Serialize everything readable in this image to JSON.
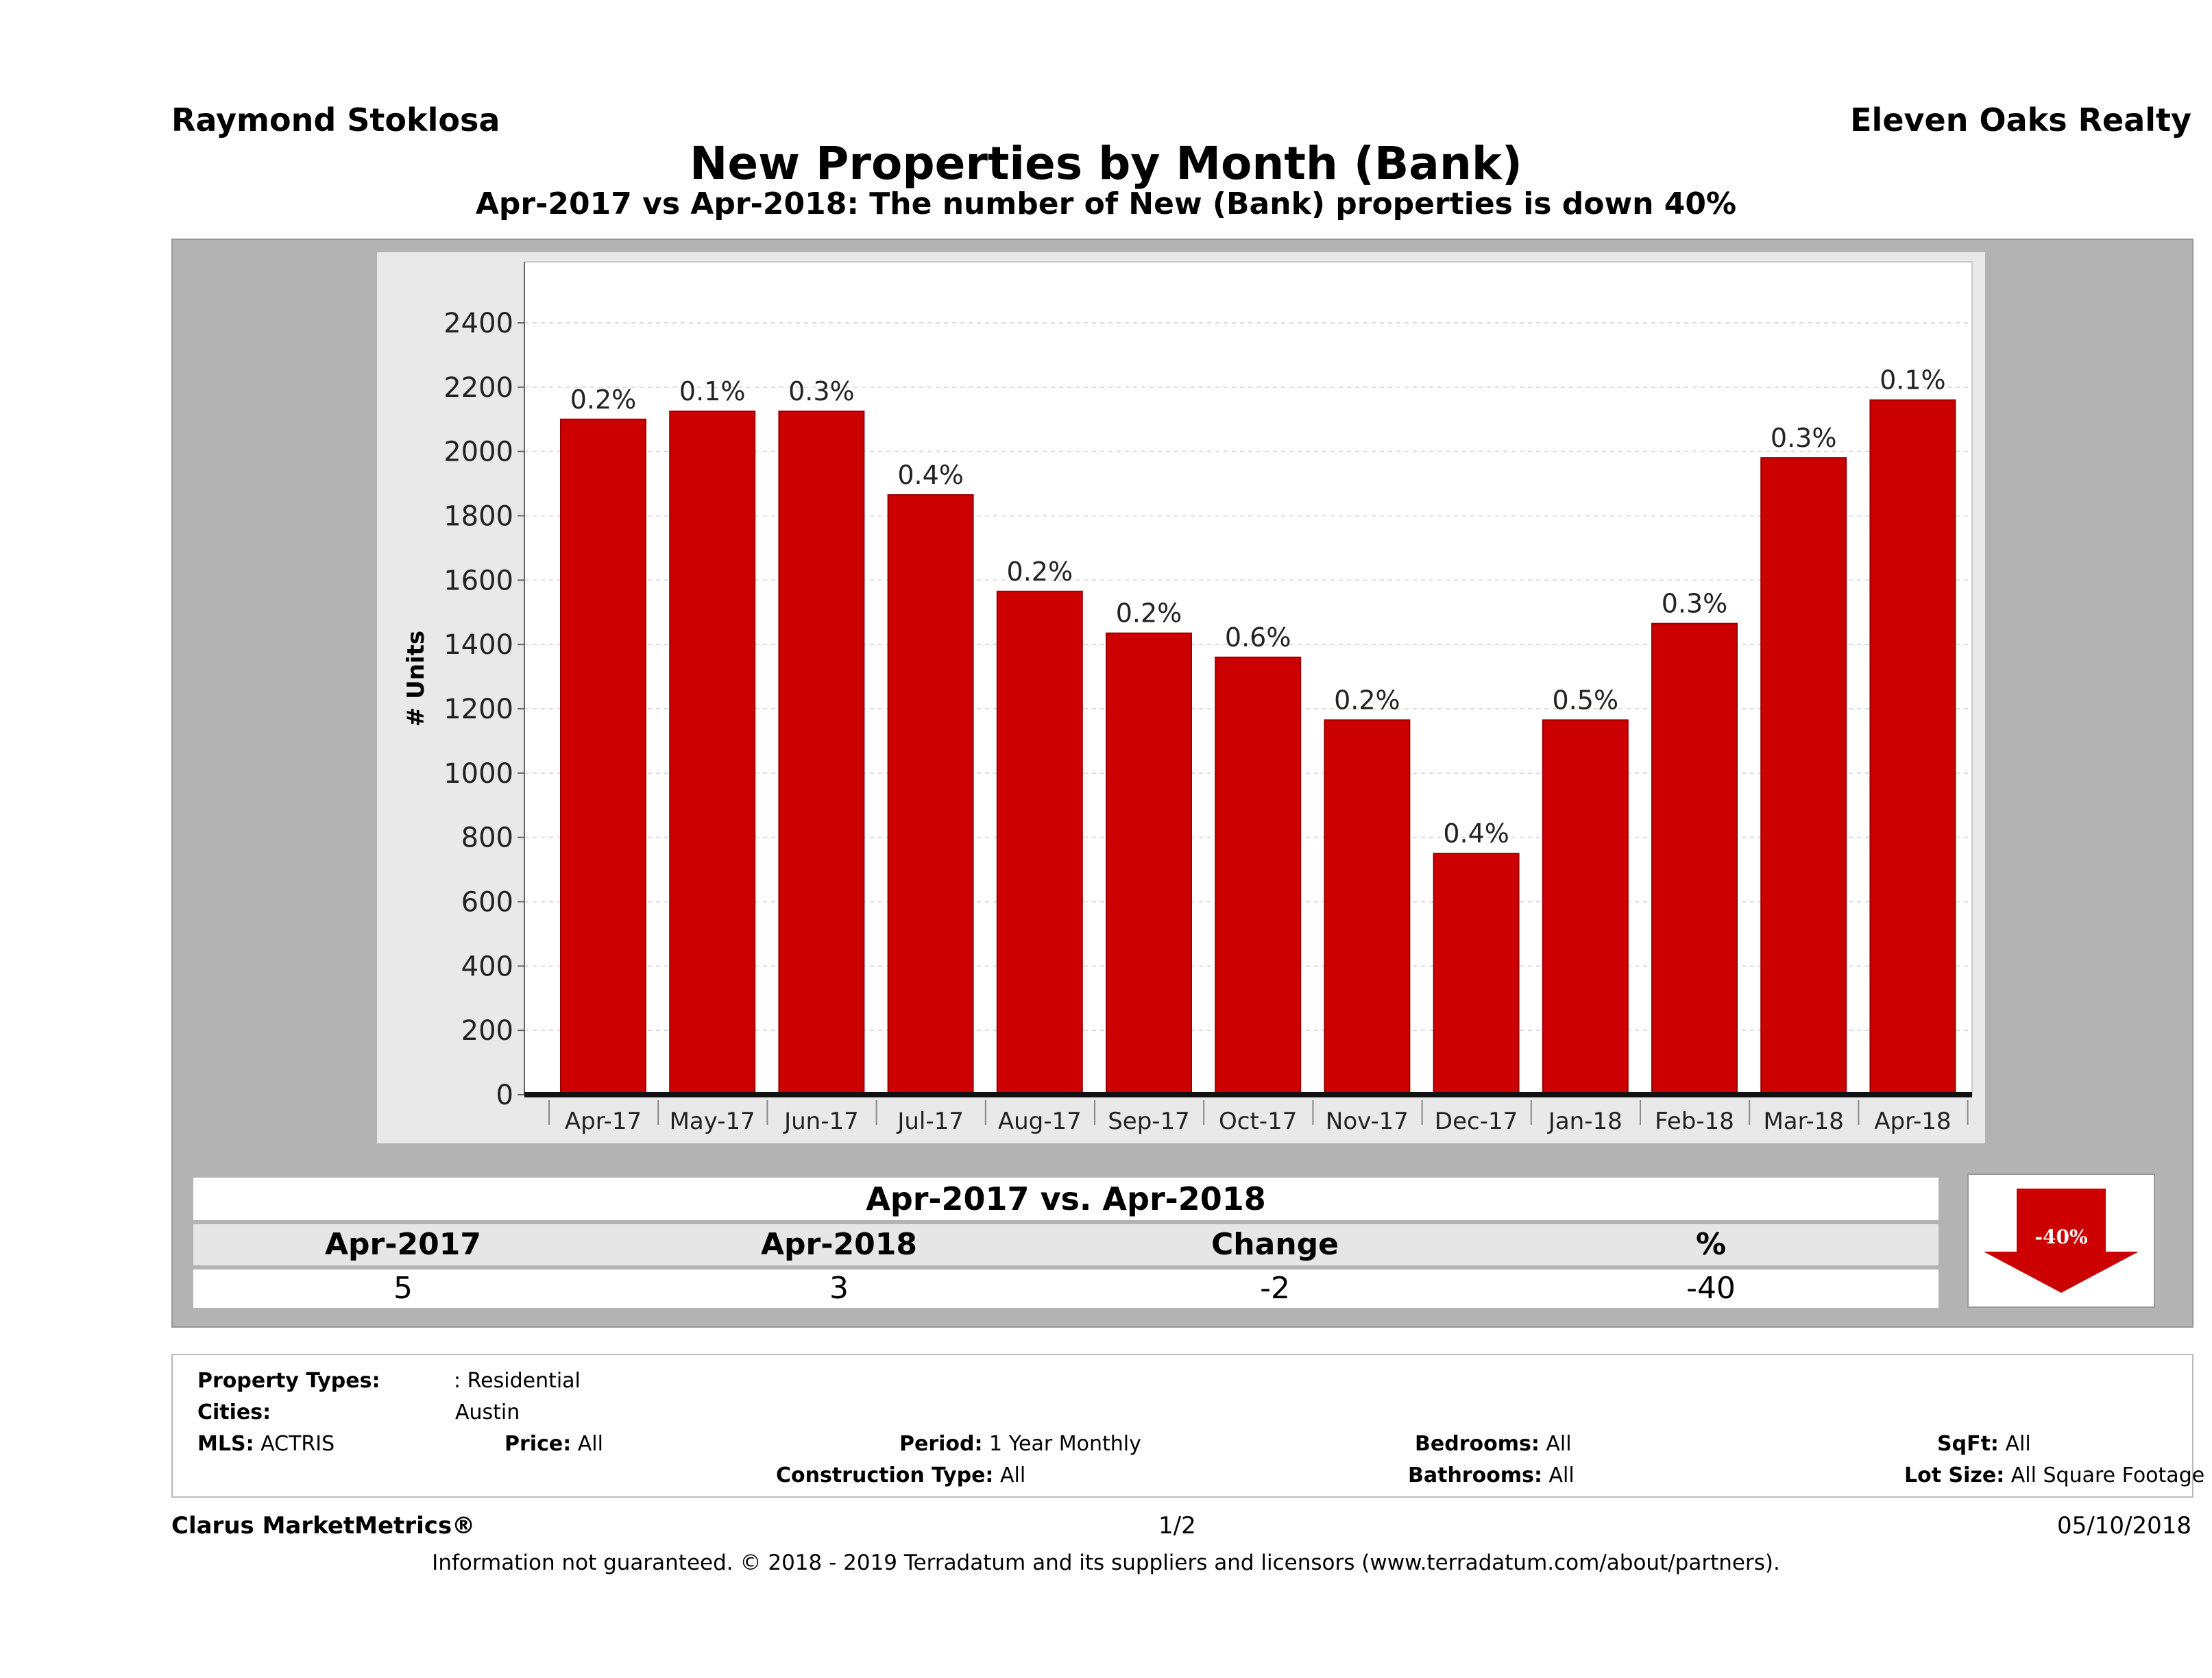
{
  "header": {
    "agent": "Raymond Stoklosa",
    "brokerage": "Eleven Oaks Realty",
    "title": "New Properties by Month (Bank)",
    "subtitle": "Apr-2017 vs Apr-2018: The number of New (Bank)  properties is down 40%"
  },
  "chart_data": {
    "type": "bar",
    "ylabel": "# Units",
    "xlabel": "",
    "ylim": [
      0,
      2400
    ],
    "yticks": [
      0,
      200,
      400,
      600,
      800,
      1000,
      1200,
      1400,
      1600,
      1800,
      2000,
      2200,
      2400
    ],
    "grid": true,
    "categories": [
      "Apr-17",
      "May-17",
      "Jun-17",
      "Jul-17",
      "Aug-17",
      "Sep-17",
      "Oct-17",
      "Nov-17",
      "Dec-17",
      "Jan-18",
      "Feb-18",
      "Mar-18",
      "Apr-18"
    ],
    "values": [
      2100,
      2125,
      2125,
      1865,
      1565,
      1435,
      1360,
      1165,
      750,
      1165,
      1465,
      1980,
      2160
    ],
    "data_labels": [
      "0.2%",
      "0.1%",
      "0.3%",
      "0.4%",
      "0.2%",
      "0.2%",
      "0.6%",
      "0.2%",
      "0.4%",
      "0.5%",
      "0.3%",
      "0.3%",
      "0.1%"
    ],
    "bar_color": "#cc0000"
  },
  "summary": {
    "title": "Apr-2017 vs. Apr-2018",
    "headers": [
      "Apr-2017",
      "Apr-2018",
      "Change",
      "%"
    ],
    "values": [
      "5",
      "3",
      "-2",
      "-40"
    ],
    "badge": "-40%"
  },
  "filters": {
    "property_types_label": "Property Types:",
    "property_types_value": ": Residential",
    "cities_label": "Cities:",
    "cities_value": "Austin",
    "mls_label": "MLS:",
    "mls_value": "ACTRIS",
    "price_label": "Price:",
    "price_value": "All",
    "period_label": "Period:",
    "period_value": "1 Year Monthly",
    "construction_label": "Construction Type:",
    "construction_value": "All",
    "bedrooms_label": "Bedrooms:",
    "bedrooms_value": "All",
    "bathrooms_label": "Bathrooms:",
    "bathrooms_value": "All",
    "sqft_label": "SqFt:",
    "sqft_value": "All",
    "lot_label": "Lot Size:",
    "lot_value": "All Square Footage"
  },
  "footer": {
    "brand": "Clarus MarketMetrics®",
    "page": "1/2",
    "date": "05/10/2018",
    "disclaimer": "Information not guaranteed. © 2018 - 2019 Terradatum and its suppliers and licensors (www.terradatum.com/about/partners)."
  }
}
